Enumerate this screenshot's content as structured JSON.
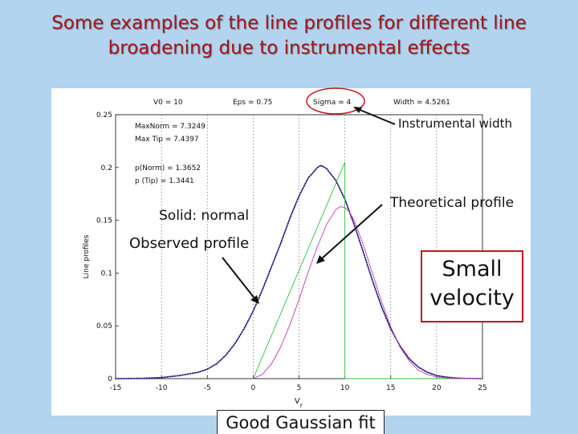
{
  "slide": {
    "title": "Some examples of the line profiles for different line\nbroadening due to instrumental effects"
  },
  "chart_data": {
    "type": "line",
    "header": [
      "V0 = 10",
      "Eps = 0.75",
      "Sigma = 4",
      "Width = 4.5261"
    ],
    "ylabel": "Line profiles",
    "xlabel": "Vr",
    "xlim": [
      -15,
      25
    ],
    "ylim": [
      0,
      0.25
    ],
    "xticks": [
      "-15",
      "-10",
      "-5",
      "0",
      "5",
      "10",
      "15",
      "20",
      "25"
    ],
    "yticks": [
      "0",
      "0.05",
      "0.1",
      "0.15",
      "0.2",
      "0.25"
    ],
    "grid": "vertical",
    "stats": [
      "MaxNorm = 7.3249",
      "Max Tip = 7.4397",
      "p(Norm) = 1.3652",
      "p (Tip) = 1.3441"
    ],
    "series": [
      {
        "color": "#1c1c8c",
        "style": "dotted",
        "x": [
          -15,
          -12,
          -10,
          -8,
          -6,
          -5,
          -4,
          -3,
          -2,
          -1,
          0,
          1,
          2,
          3,
          4,
          5,
          6,
          7,
          7.4,
          8,
          9,
          10,
          11,
          12,
          13,
          14,
          15,
          16,
          17,
          18,
          19,
          20,
          21,
          22,
          23,
          25
        ],
        "y": [
          0,
          0.0003,
          0.001,
          0.003,
          0.006,
          0.009,
          0.014,
          0.022,
          0.033,
          0.047,
          0.064,
          0.084,
          0.106,
          0.128,
          0.152,
          0.173,
          0.19,
          0.2,
          0.202,
          0.199,
          0.188,
          0.17,
          0.146,
          0.12,
          0.093,
          0.068,
          0.047,
          0.031,
          0.019,
          0.011,
          0.006,
          0.003,
          0.0015,
          0.0006,
          0.0002,
          0
        ]
      },
      {
        "color": "#c0392b",
        "style": "solid",
        "x": [
          -15,
          -12,
          -10,
          -8,
          -6,
          -5,
          -4,
          -3,
          -2,
          -1,
          0,
          1,
          2,
          3,
          4,
          5,
          6,
          7,
          7.4,
          8,
          9,
          10,
          11,
          12,
          13,
          14,
          15,
          16,
          17,
          18,
          19,
          20,
          21,
          22,
          23,
          25
        ],
        "y": [
          0,
          0.0003,
          0.001,
          0.003,
          0.006,
          0.009,
          0.014,
          0.022,
          0.033,
          0.047,
          0.064,
          0.084,
          0.106,
          0.128,
          0.152,
          0.173,
          0.19,
          0.2,
          0.202,
          0.199,
          0.188,
          0.17,
          0.146,
          0.12,
          0.093,
          0.068,
          0.047,
          0.031,
          0.019,
          0.011,
          0.006,
          0.003,
          0.0015,
          0.0006,
          0.0002,
          0
        ]
      },
      {
        "color": "#2fbf3f",
        "style": "solid",
        "x": [
          0,
          10,
          10,
          25
        ],
        "y": [
          0,
          0.205,
          0,
          0
        ]
      },
      {
        "color": "#c23bb5",
        "style": "solid",
        "x": [
          0,
          1,
          2,
          3,
          4,
          5,
          6,
          7,
          8,
          9,
          9.5,
          10,
          10.5,
          11,
          12,
          13,
          14,
          15,
          16,
          17,
          18,
          19,
          20,
          22,
          25
        ],
        "y": [
          0,
          0.004,
          0.014,
          0.03,
          0.051,
          0.075,
          0.101,
          0.125,
          0.146,
          0.16,
          0.163,
          0.162,
          0.158,
          0.15,
          0.127,
          0.1,
          0.073,
          0.049,
          0.03,
          0.017,
          0.008,
          0.004,
          0.0015,
          0.0002,
          0
        ]
      }
    ]
  },
  "annotations": {
    "solid_normal": "Solid: normal",
    "observed_profile": "Observed profile",
    "instrumental_width": "Instrumental width",
    "theoretical_profile": "Theoretical profile",
    "small_velocity": "Small\nvelocity",
    "good_fit": "Good Gaussian fit"
  },
  "colors": {
    "background": "#b3d4ee",
    "title": "#a3161b",
    "highlight": "#c4161c"
  }
}
